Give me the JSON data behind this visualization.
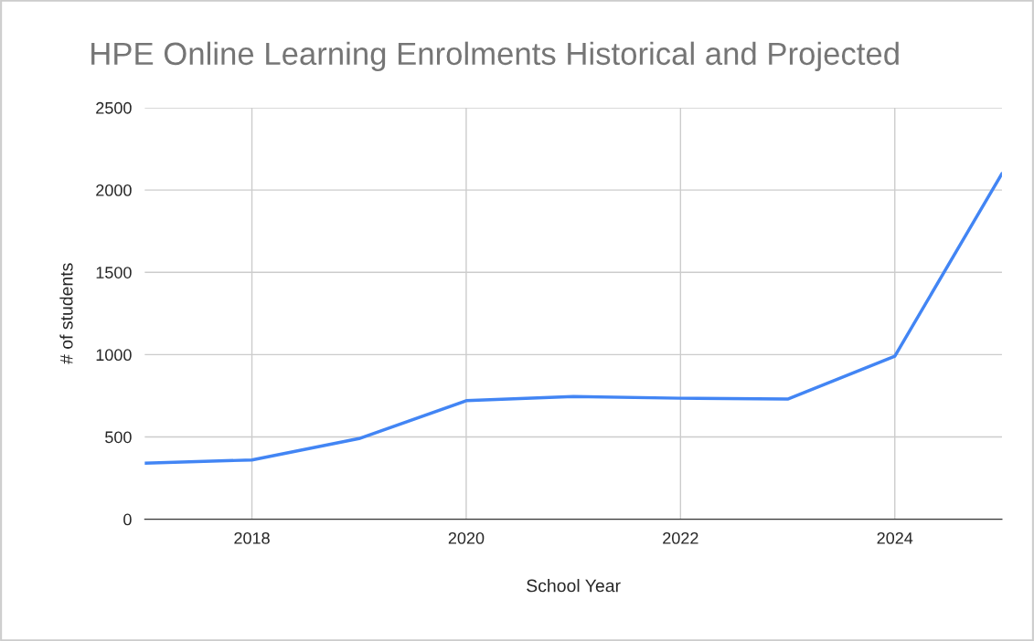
{
  "chart_data": {
    "type": "line",
    "title": "HPE Online Learning Enrolments Historical and Projected",
    "xlabel": "School Year",
    "ylabel": "# of students",
    "x": [
      2017,
      2018,
      2019,
      2020,
      2021,
      2022,
      2023,
      2024,
      2025
    ],
    "series": [
      {
        "color": "#4285f4",
        "values": [
          340,
          360,
          490,
          720,
          745,
          735,
          730,
          990,
          2100
        ]
      }
    ],
    "xlim": [
      2017,
      2025
    ],
    "xticks": [
      2018,
      2020,
      2022,
      2024
    ],
    "ylim": [
      0,
      2500
    ],
    "yticks": [
      0,
      500,
      1000,
      1500,
      2000,
      2500
    ],
    "grid": true,
    "marker": "none",
    "line_style": "solid"
  }
}
